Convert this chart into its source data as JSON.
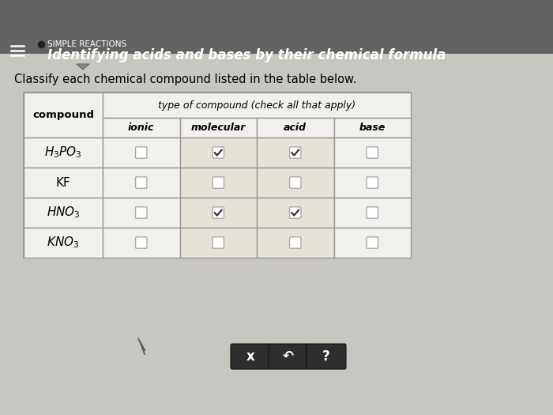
{
  "header_bg": "#636363",
  "header_title_small": "SIMPLE REACTIONS",
  "header_title_large": "Identifying acids and bases by their chemical formula",
  "body_bg": "#c8c6c0",
  "instruction": "Classify each chemical compound listed in the table below.",
  "col_header_main": "type of compound (check all that apply)",
  "col_header_sub": [
    "ionic",
    "molecular",
    "acid",
    "base"
  ],
  "checkboxes": [
    [
      false,
      true,
      true,
      false
    ],
    [
      false,
      false,
      false,
      false
    ],
    [
      false,
      true,
      true,
      false
    ],
    [
      false,
      false,
      false,
      false
    ]
  ],
  "table_bg": "#f2f0ec",
  "table_col_shaded": "#e6e2d8",
  "table_border": "#999999",
  "button_bg": "#2e2e2e",
  "button_labels": [
    "x",
    "↶",
    "?"
  ],
  "figsize": [
    7.0,
    5.25
  ],
  "dpi": 100
}
